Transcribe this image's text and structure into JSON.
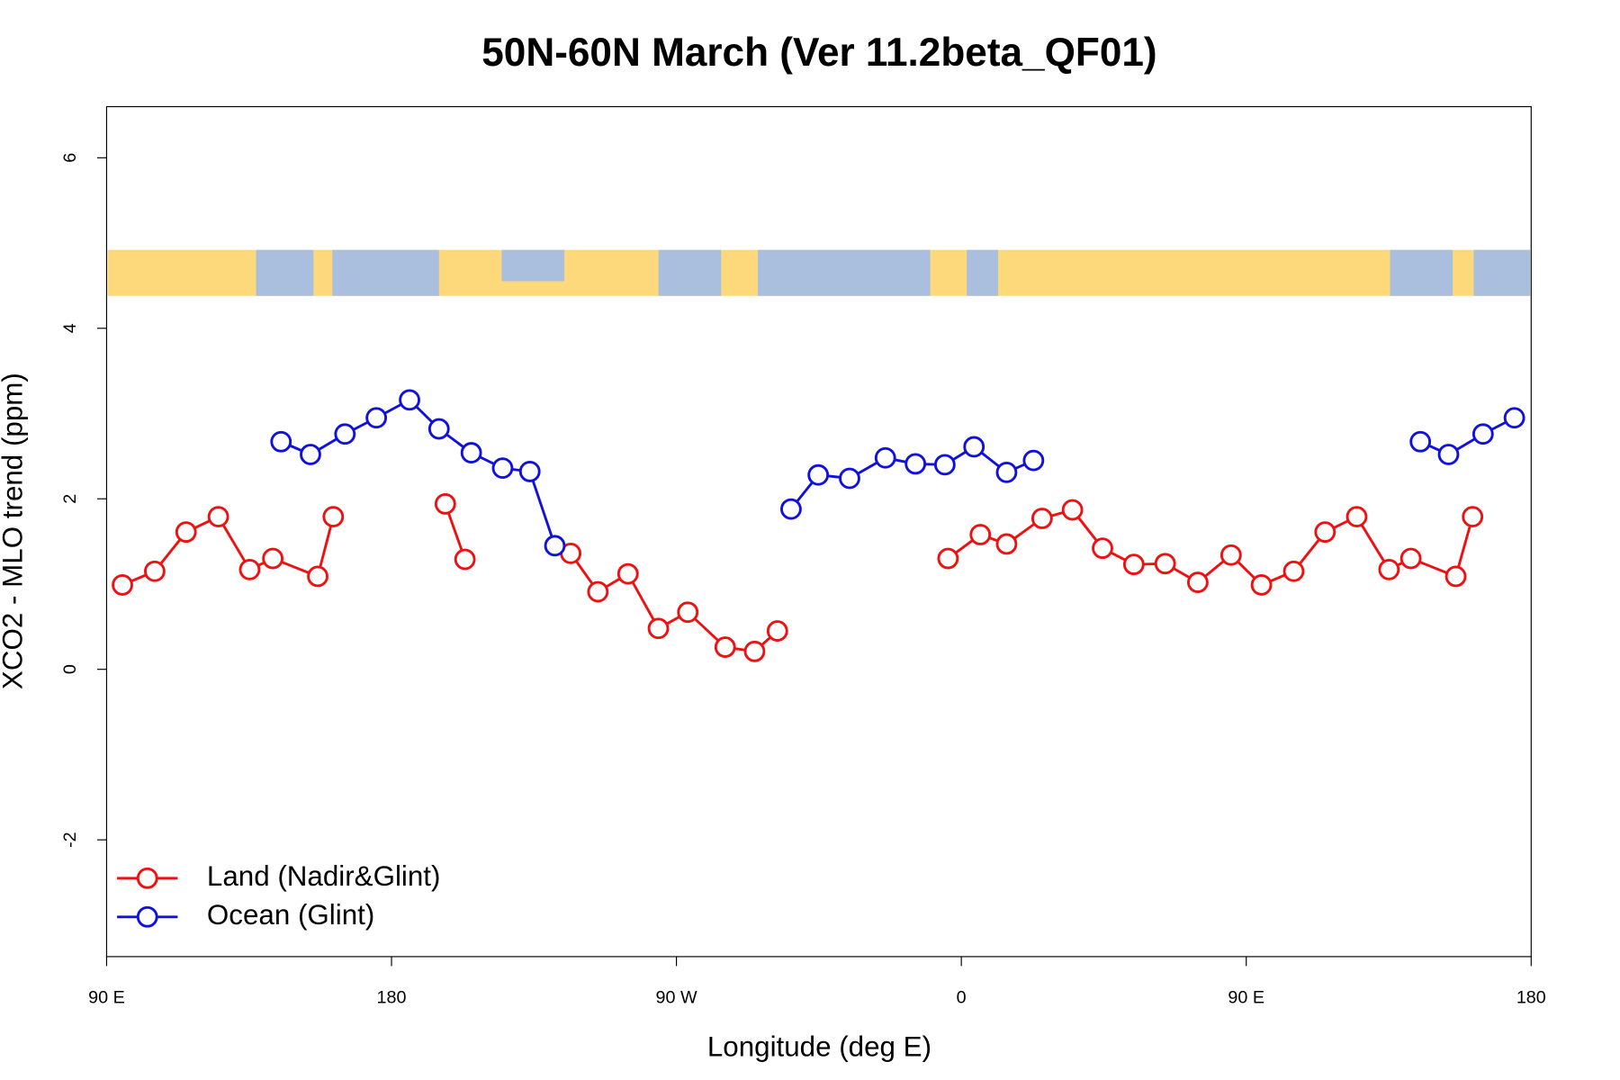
{
  "chart_data": {
    "type": "line",
    "title": "50N-60N March (Ver 11.2beta_QF01)",
    "xlabel": "Longitude (deg E)",
    "ylabel": "XCO2 - MLO trend (ppm)",
    "xlim": [
      90,
      540
    ],
    "ylim": [
      -3.37,
      6.6
    ],
    "xticks": [
      {
        "value": 90,
        "label": "90 E"
      },
      180,
      {
        "value": 270,
        "label": "90 W"
      },
      {
        "value": 360,
        "label": "0"
      },
      {
        "value": 450,
        "label": "90 E"
      },
      {
        "value": 540,
        "label": "180"
      }
    ],
    "yticks": [
      -2,
      0,
      2,
      4,
      6
    ],
    "legend": "bottom-left",
    "series": [
      {
        "name": "Land (Nadir&Glint)",
        "color": "#ee1111",
        "x": [
          95.0,
          105.2,
          115.1,
          125.3,
          135.2,
          142.5,
          156.7,
          161.6,
          null,
          197.0,
          203.2,
          null,
          236.6,
          245.2,
          254.7,
          264.3,
          273.6,
          285.4,
          294.7,
          301.9,
          null,
          355.8,
          366.0,
          374.3,
          385.5,
          395.1,
          404.6,
          414.5,
          424.4,
          434.7,
          445.2,
          454.8,
          465.0,
          474.9,
          484.9,
          495.1,
          502.0,
          516.2,
          521.5
        ],
        "values": [
          0.99,
          1.15,
          1.61,
          1.79,
          1.17,
          1.3,
          1.09,
          1.79,
          null,
          1.94,
          1.29,
          null,
          1.36,
          0.91,
          1.12,
          0.48,
          0.67,
          0.26,
          0.21,
          0.45,
          null,
          1.3,
          1.58,
          1.47,
          1.77,
          1.87,
          1.42,
          1.23,
          1.24,
          1.02,
          1.34,
          0.99,
          1.15,
          1.61,
          1.79,
          1.17,
          1.3,
          1.09,
          1.79
        ]
      },
      {
        "name": "Ocean (Glint)",
        "color": "#1111dd",
        "x": [
          145.1,
          154.4,
          165.3,
          175.2,
          185.7,
          195.0,
          205.2,
          215.1,
          223.7,
          231.6,
          null,
          306.2,
          314.8,
          324.7,
          336.0,
          345.5,
          354.8,
          364.0,
          374.3,
          382.8,
          null,
          505.0,
          513.9,
          524.8,
          534.7
        ],
        "values": [
          2.67,
          2.52,
          2.76,
          2.95,
          3.16,
          2.82,
          2.54,
          2.36,
          2.32,
          1.45,
          null,
          1.88,
          2.28,
          2.24,
          2.48,
          2.41,
          2.4,
          2.61,
          2.31,
          2.45,
          null,
          2.67,
          2.52,
          2.76,
          2.95
        ]
      }
    ]
  }
}
